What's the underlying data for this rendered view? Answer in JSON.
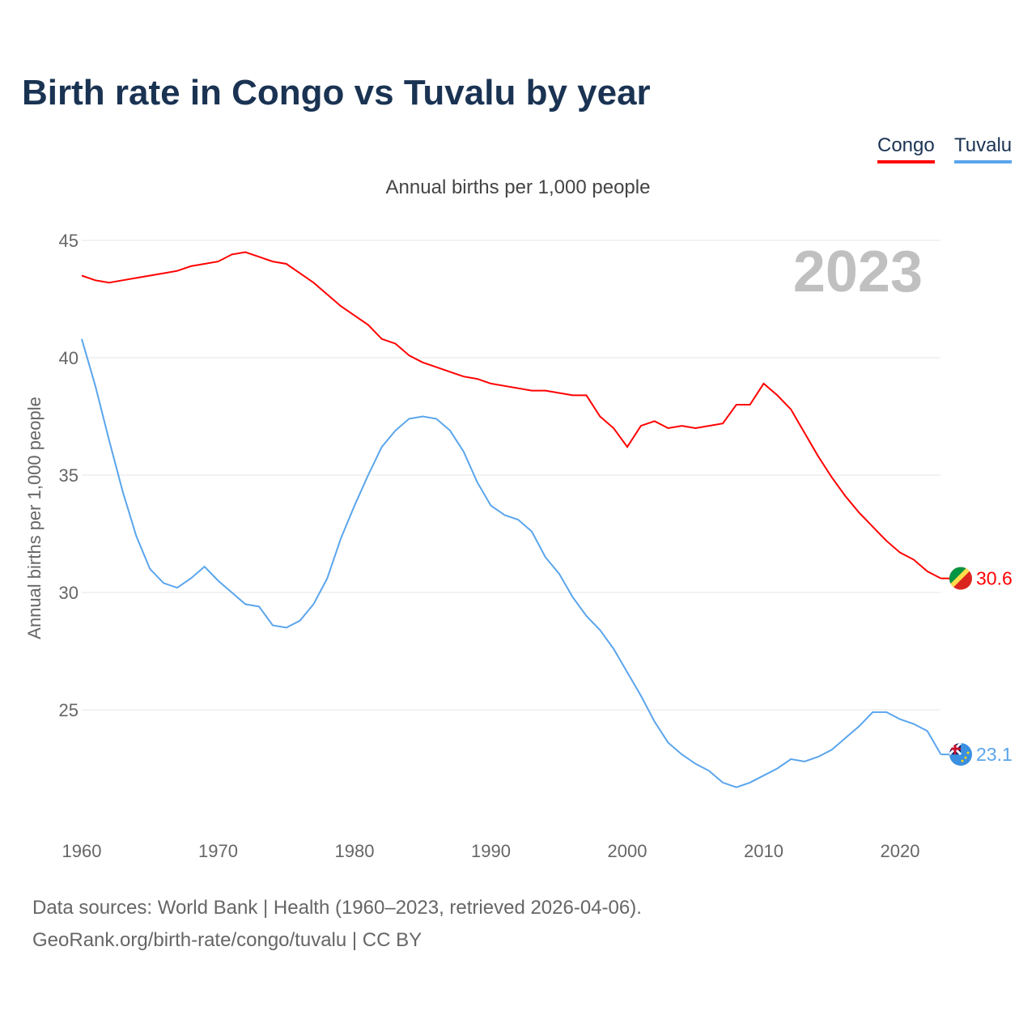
{
  "title": "Birth rate in Congo vs Tuvalu by year",
  "legend": [
    {
      "label": "Congo",
      "color": "#ff0000"
    },
    {
      "label": "Tuvalu",
      "color": "#5aa5ec"
    }
  ],
  "subtitle": "Annual births per 1,000 people",
  "year_watermark": "2023",
  "source_line1": "Data sources: World Bank | Health (1960–2023, retrieved 2026-04-06).",
  "source_line2": "GeoRank.org/birth-rate/congo/tuvalu | CC BY",
  "chart_data": {
    "type": "line",
    "title": "Birth rate in Congo vs Tuvalu by year",
    "xlabel": "",
    "ylabel": "Annual births per 1,000 people",
    "xlim": [
      1960,
      2023
    ],
    "ylim": [
      20,
      46
    ],
    "xticks": [
      1960,
      1970,
      1980,
      1990,
      2000,
      2010,
      2020
    ],
    "yticks": [
      25,
      30,
      35,
      40,
      45
    ],
    "grid": true,
    "legend_position": "top-right",
    "x": [
      1960,
      1961,
      1962,
      1963,
      1964,
      1965,
      1966,
      1967,
      1968,
      1969,
      1970,
      1971,
      1972,
      1973,
      1974,
      1975,
      1976,
      1977,
      1978,
      1979,
      1980,
      1981,
      1982,
      1983,
      1984,
      1985,
      1986,
      1987,
      1988,
      1989,
      1990,
      1991,
      1992,
      1993,
      1994,
      1995,
      1996,
      1997,
      1998,
      1999,
      2000,
      2001,
      2002,
      2003,
      2004,
      2005,
      2006,
      2007,
      2008,
      2009,
      2010,
      2011,
      2012,
      2013,
      2014,
      2015,
      2016,
      2017,
      2018,
      2019,
      2020,
      2021,
      2022,
      2023
    ],
    "series": [
      {
        "name": "Congo",
        "color": "#ff0000",
        "end_label": "30.6",
        "values": [
          43.5,
          43.3,
          43.2,
          43.3,
          43.4,
          43.5,
          43.6,
          43.7,
          43.9,
          44.0,
          44.1,
          44.4,
          44.5,
          44.3,
          44.1,
          44.0,
          43.6,
          43.2,
          42.7,
          42.2,
          41.8,
          41.4,
          40.8,
          40.6,
          40.1,
          39.8,
          39.6,
          39.4,
          39.2,
          39.1,
          38.9,
          38.8,
          38.7,
          38.6,
          38.6,
          38.5,
          38.4,
          38.4,
          37.5,
          37.0,
          36.2,
          37.1,
          37.3,
          37.0,
          37.1,
          37.0,
          37.1,
          37.2,
          38.0,
          38.0,
          38.9,
          38.4,
          37.8,
          36.8,
          35.8,
          34.9,
          34.1,
          33.4,
          32.8,
          32.2,
          31.7,
          31.4,
          30.9,
          30.6
        ]
      },
      {
        "name": "Tuvalu",
        "color": "#5aa5ec",
        "end_label": "23.1",
        "values": [
          40.8,
          38.8,
          36.5,
          34.3,
          32.4,
          31.0,
          30.4,
          30.2,
          30.6,
          31.1,
          30.5,
          30.0,
          29.5,
          29.4,
          28.6,
          28.5,
          28.8,
          29.5,
          30.6,
          32.3,
          33.7,
          35.0,
          36.2,
          36.9,
          37.4,
          37.5,
          37.4,
          36.9,
          36.0,
          34.7,
          33.7,
          33.3,
          33.1,
          32.6,
          31.5,
          30.8,
          29.8,
          29.0,
          28.4,
          27.6,
          26.6,
          25.6,
          24.5,
          23.6,
          23.1,
          22.7,
          22.4,
          21.9,
          21.7,
          21.9,
          22.2,
          22.5,
          22.9,
          22.8,
          23.0,
          23.3,
          23.8,
          24.3,
          24.9,
          24.9,
          24.6,
          24.4,
          24.1,
          23.1
        ]
      }
    ]
  }
}
